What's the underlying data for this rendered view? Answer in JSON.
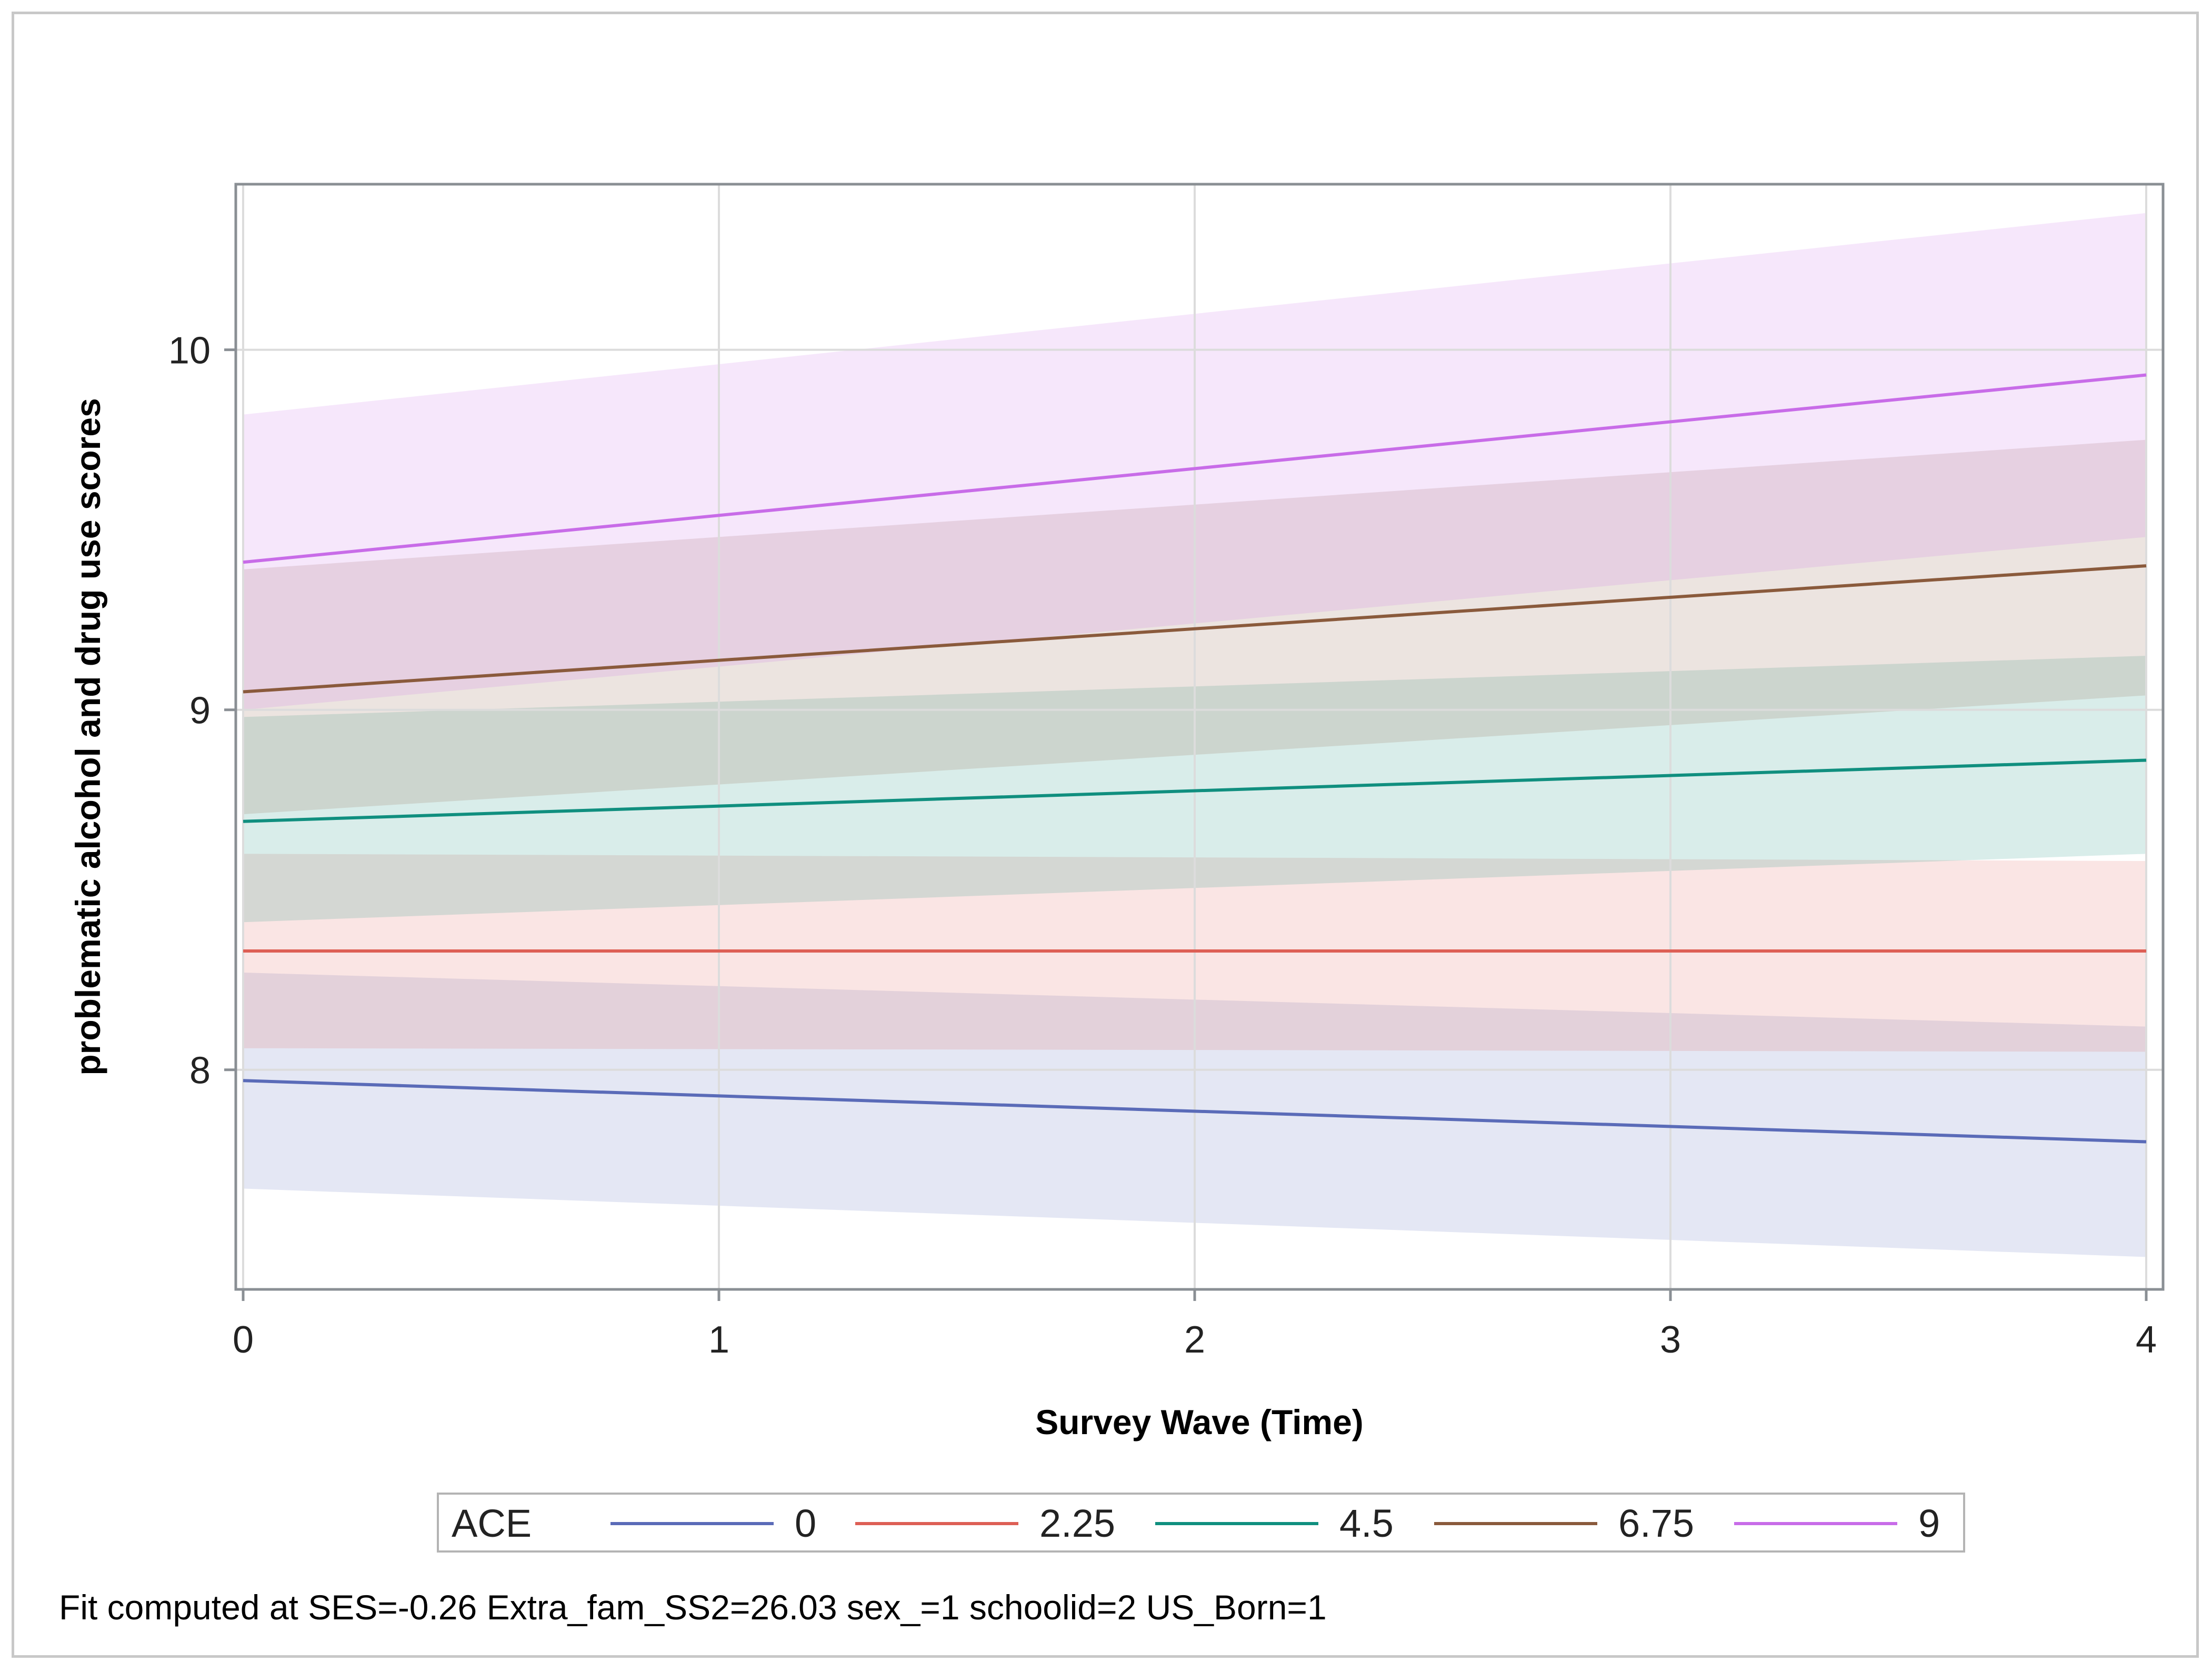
{
  "chart_data": {
    "type": "line",
    "title": "",
    "xlabel": "Survey Wave (Time)",
    "ylabel": "problematic alcohol and drug use scores",
    "xlim": [
      0,
      4
    ],
    "ylim": [
      7.39,
      10.46
    ],
    "x_ticks": [
      0,
      1,
      2,
      3,
      4
    ],
    "y_ticks": [
      8,
      9,
      10
    ],
    "grid": true,
    "legend_title": "ACE",
    "legend_position": "bottom",
    "x": [
      0,
      4
    ],
    "series": [
      {
        "name": "0",
        "color": "#5a6bb8",
        "band_color": "#e6e8f3",
        "values": [
          7.97,
          7.8
        ],
        "lower": [
          7.67,
          7.48
        ],
        "upper": [
          8.27,
          8.12
        ]
      },
      {
        "name": "2.25",
        "color": "#dd5f55",
        "band_color": "#fde0e0",
        "values": [
          8.33,
          8.33
        ],
        "lower": [
          8.06,
          8.05
        ],
        "upper": [
          8.6,
          8.58
        ]
      },
      {
        "name": "4.5",
        "color": "#108f7f",
        "band_color": "#e0efee",
        "values": [
          8.69,
          8.86
        ],
        "lower": [
          8.41,
          8.6
        ],
        "upper": [
          8.98,
          9.15
        ]
      },
      {
        "name": "6.75",
        "color": "#8a5a3c",
        "band_color": "#f5ebe2",
        "values": [
          9.05,
          9.4
        ],
        "lower": [
          8.71,
          9.04
        ],
        "upper": [
          9.39,
          9.75
        ]
      },
      {
        "name": "9",
        "color": "#c86ce8",
        "band_color": "#f5e6f7",
        "values": [
          9.41,
          9.93
        ],
        "lower": [
          9.0,
          9.48
        ],
        "upper": [
          9.82,
          10.38
        ]
      }
    ],
    "footnote": "Fit computed at SES=-0.26 Extra_fam_SS2=26.03 sex_=1 schoolid=2 US_Born=1"
  }
}
